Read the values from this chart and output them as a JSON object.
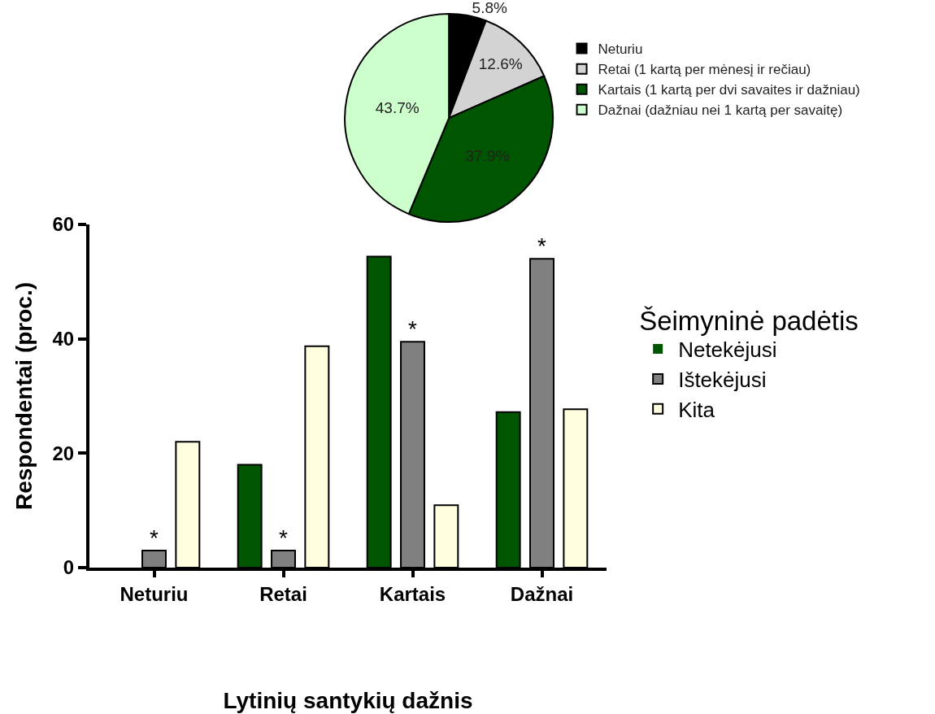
{
  "chart_data": [
    {
      "type": "pie",
      "categories": [
        "Neturiu",
        "Retai (1 kartą per mėnesį ir rečiau)",
        "Kartais (1 kartą per dvi savaites ir dažniau)",
        "Dažnai (dažniau nei 1 kartą per savaitę)"
      ],
      "values": [
        5.8,
        12.6,
        37.9,
        43.7
      ],
      "value_labels": [
        "5.8%",
        "12.6%",
        "37.9%",
        "43.7%"
      ],
      "colors": [
        "#000000",
        "#d3d3d3",
        "#005500",
        "#ccffcc"
      ],
      "legend": "right"
    },
    {
      "type": "bar",
      "categories": [
        "Neturiu",
        "Retai",
        "Kartais",
        "Dažnai"
      ],
      "xlabel": "Lytinių santykių dažnis",
      "ylabel": "Respondentai (proc.)",
      "legend_title": "Šeimyninė padėtis",
      "series": [
        {
          "name": "Netekėjusi",
          "color": "#005500",
          "values": [
            0,
            18,
            54.4,
            27.2
          ]
        },
        {
          "name": "Ištekėjusi",
          "color": "#808080",
          "values": [
            3,
            3,
            39.5,
            54
          ]
        },
        {
          "name": "Kita",
          "color": "#ffffe0",
          "values": [
            22,
            38.7,
            10.9,
            27.7
          ]
        }
      ],
      "ylim": [
        0,
        60
      ],
      "yticks": [
        0,
        20,
        40,
        60
      ],
      "grid": false,
      "legend": "right",
      "annotations": [
        {
          "text": "*",
          "x": "Neturiu",
          "y": 3
        },
        {
          "text": "*",
          "x": "Retai",
          "y": 3
        },
        {
          "text": "*",
          "x": "Kartais",
          "y": 39.5
        },
        {
          "text": "*",
          "x": "Dažnai",
          "y": 54
        }
      ]
    }
  ]
}
